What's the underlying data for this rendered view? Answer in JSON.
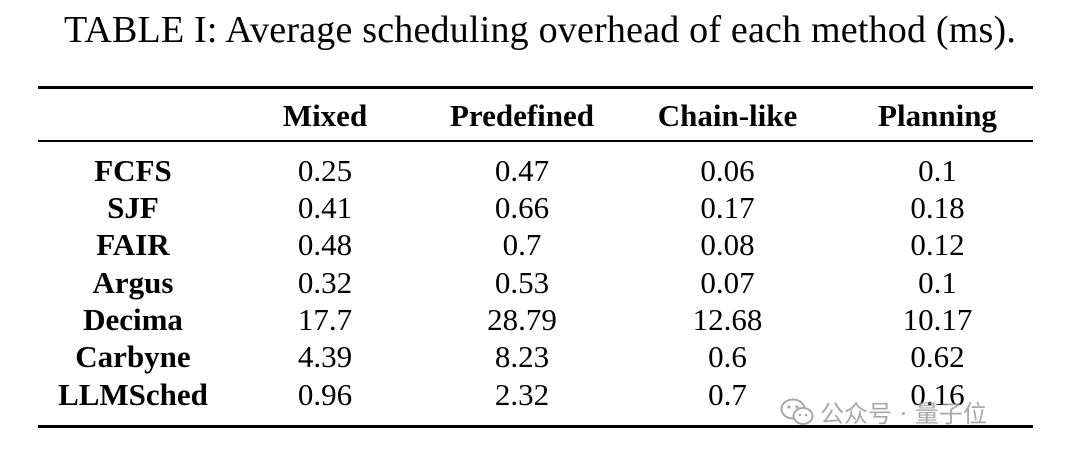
{
  "caption": "TABLE I: Average scheduling overhead of each method (ms).",
  "table": {
    "headers": [
      "",
      "Mixed",
      "Predefined",
      "Chain-like",
      "Planning"
    ],
    "rows": [
      [
        "FCFS",
        "0.25",
        "0.47",
        "0.06",
        "0.1"
      ],
      [
        "SJF",
        "0.41",
        "0.66",
        "0.17",
        "0.18"
      ],
      [
        "FAIR",
        "0.48",
        "0.7",
        "0.08",
        "0.12"
      ],
      [
        "Argus",
        "0.32",
        "0.53",
        "0.07",
        "0.1"
      ],
      [
        "Decima",
        "17.7",
        "28.79",
        "12.68",
        "10.17"
      ],
      [
        "Carbyne",
        "4.39",
        "8.23",
        "0.6",
        "0.62"
      ],
      [
        "LLMSched",
        "0.96",
        "2.32",
        "0.7",
        "0.16"
      ]
    ]
  },
  "watermark": {
    "text": "公众号 · 量子位",
    "icon": "wechat-icon"
  }
}
